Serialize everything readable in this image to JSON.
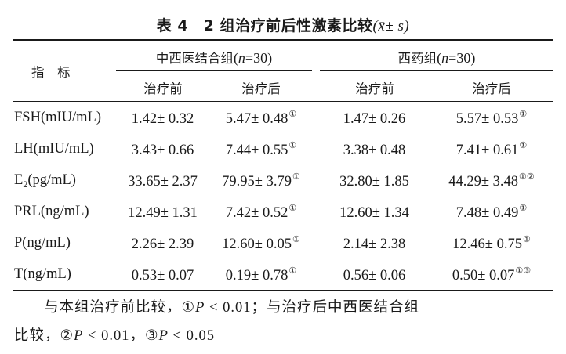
{
  "caption": {
    "table_label": "表 4",
    "title": "2 组治疗前后性激素比较",
    "notation_open": "(",
    "notation_mean": "x̄",
    "notation_pm": "± ",
    "notation_sd": "s",
    "notation_close": ")"
  },
  "header": {
    "indicator_label": "指　标",
    "groups": [
      {
        "name": "中西医结合组",
        "n_var": "n",
        "n_value": "=30"
      },
      {
        "name": "西药组",
        "n_var": "n",
        "n_value": "=30"
      }
    ],
    "subcolumns": [
      "治疗前",
      "治疗后",
      "治疗前",
      "治疗后"
    ],
    "paren_open": "(",
    "paren_close": ")"
  },
  "rows": [
    {
      "label_main": "FSH(mIU/mL)",
      "label_sub": "",
      "label_tail": "",
      "values": [
        {
          "text": "1.42± 0.32",
          "marks": ""
        },
        {
          "text": "5.47± 0.48",
          "marks": "①"
        },
        {
          "text": "1.47± 0.26",
          "marks": ""
        },
        {
          "text": "5.57± 0.53",
          "marks": "①"
        }
      ]
    },
    {
      "label_main": "LH(mIU/mL)",
      "label_sub": "",
      "label_tail": "",
      "values": [
        {
          "text": "3.43± 0.66",
          "marks": ""
        },
        {
          "text": "7.44± 0.55",
          "marks": "①"
        },
        {
          "text": "3.38± 0.48",
          "marks": ""
        },
        {
          "text": "7.41± 0.61",
          "marks": "①"
        }
      ]
    },
    {
      "label_main": "E",
      "label_sub": "2",
      "label_tail": "(pg/mL)",
      "values": [
        {
          "text": "33.65± 2.37",
          "marks": ""
        },
        {
          "text": "79.95± 3.79",
          "marks": "①"
        },
        {
          "text": "32.80± 1.85",
          "marks": ""
        },
        {
          "text": "44.29± 3.48",
          "marks": "①②"
        }
      ]
    },
    {
      "label_main": "PRL(ng/mL)",
      "label_sub": "",
      "label_tail": "",
      "values": [
        {
          "text": "12.49± 1.31",
          "marks": ""
        },
        {
          "text": "7.42± 0.52",
          "marks": "①"
        },
        {
          "text": "12.60± 1.34",
          "marks": ""
        },
        {
          "text": "7.48± 0.49",
          "marks": "①"
        }
      ]
    },
    {
      "label_main": "P(ng/mL)",
      "label_sub": "",
      "label_tail": "",
      "values": [
        {
          "text": "2.26± 2.39",
          "marks": ""
        },
        {
          "text": "12.60± 0.05",
          "marks": "①"
        },
        {
          "text": "2.14± 2.38",
          "marks": ""
        },
        {
          "text": "12.46± 0.75",
          "marks": "①"
        }
      ]
    },
    {
      "label_main": "T(ng/mL)",
      "label_sub": "",
      "label_tail": "",
      "values": [
        {
          "text": "0.53± 0.07",
          "marks": ""
        },
        {
          "text": "0.19± 0.78",
          "marks": "①"
        },
        {
          "text": "0.56± 0.06",
          "marks": ""
        },
        {
          "text": "0.50± 0.07",
          "marks": "①③"
        }
      ]
    }
  ],
  "footnote": {
    "line1_prefix": "与本组治疗前比较，",
    "mark1": "①",
    "p1_var": "P",
    "p1_rel": " < 0.01",
    "line1_suffix": "；与治疗后中西医结合组",
    "line2_prefix": "比较，",
    "mark2": "②",
    "p2_var": "P",
    "p2_rel": " < 0.01",
    "sep": "，",
    "mark3": "③",
    "p3_var": "P",
    "p3_rel": " < 0.05"
  }
}
